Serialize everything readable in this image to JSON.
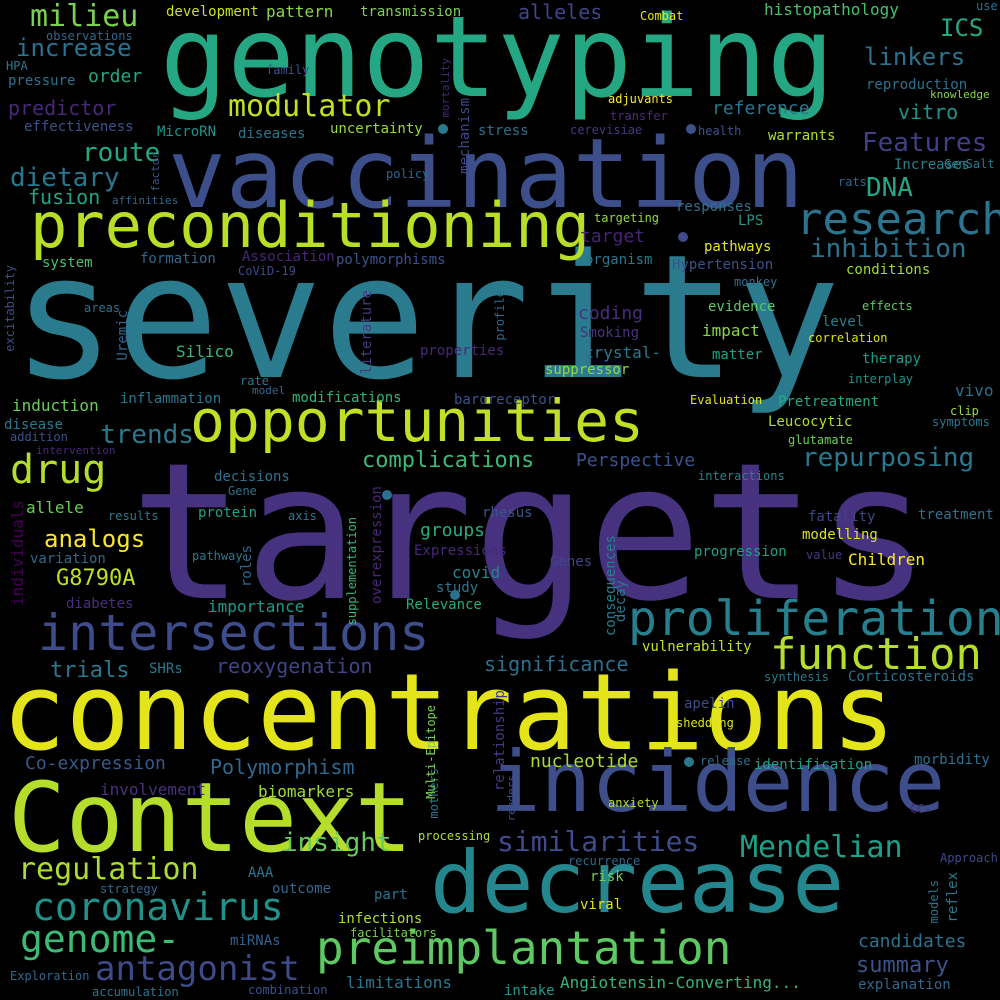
{
  "words": [
    {
      "text": "severity",
      "color": "#2b7b8e"
    },
    {
      "text": "targets",
      "color": "#46327e"
    },
    {
      "text": "concentrations",
      "color": "#e3e419"
    },
    {
      "text": "genotyping",
      "color": "#26a784"
    },
    {
      "text": "vaccination",
      "color": "#3c4f8a"
    },
    {
      "text": "Context",
      "color": "#b5de2c"
    },
    {
      "text": "incidence",
      "color": "#3d4e8a"
    },
    {
      "text": "decrease",
      "color": "#24878e"
    },
    {
      "text": "preconditioning",
      "color": "#b9de28"
    },
    {
      "text": "opportunities",
      "color": "#c0df25"
    },
    {
      "text": "intersections",
      "color": "#3e4c8a"
    },
    {
      "text": "preimplantation",
      "color": "#5ec962"
    },
    {
      "text": "proliferation",
      "color": "#277f8e"
    },
    {
      "text": "research",
      "color": "#2c738e"
    },
    {
      "text": "function",
      "color": "#b5de2c"
    },
    {
      "text": "drug",
      "color": "#b5de2c"
    },
    {
      "text": "coronavirus",
      "color": "#21918c"
    },
    {
      "text": "genome-",
      "color": "#3bbb75"
    },
    {
      "text": "antagonist",
      "color": "#3e4a89"
    },
    {
      "text": "milieu",
      "color": "#7ad151"
    },
    {
      "text": "modulator",
      "color": "#c2df23"
    },
    {
      "text": "regulation",
      "color": "#addc30"
    },
    {
      "text": "Mendelian",
      "color": "#1f9e89"
    },
    {
      "text": "similarities",
      "color": "#3e4c8a"
    },
    {
      "text": "repurposing",
      "color": "#2a788e"
    },
    {
      "text": "complications",
      "color": "#3aba76"
    },
    {
      "text": "inhibition",
      "color": "#2c728e"
    },
    {
      "text": "trends",
      "color": "#2a788e"
    },
    {
      "text": "insight",
      "color": "#65cb5e"
    },
    {
      "text": "Features",
      "color": "#433e85"
    },
    {
      "text": "dietary",
      "color": "#2a768e"
    },
    {
      "text": "route",
      "color": "#22a884"
    },
    {
      "text": "linkers",
      "color": "#2c728e"
    },
    {
      "text": "increase",
      "color": "#2c728e"
    },
    {
      "text": "ICS",
      "color": "#23a983"
    },
    {
      "text": "DNA",
      "color": "#22a785"
    },
    {
      "text": "analogs",
      "color": "#fde725"
    },
    {
      "text": "G8790A",
      "color": "#c2df23"
    },
    {
      "text": "trials",
      "color": "#2a788e"
    },
    {
      "text": "reoxygenation",
      "color": "#414487"
    },
    {
      "text": "significance",
      "color": "#2e6f8e"
    },
    {
      "text": "Polymorphism",
      "color": "#31688e"
    },
    {
      "text": "Co-expression",
      "color": "#38598c"
    },
    {
      "text": "predictor",
      "color": "#482878"
    },
    {
      "text": "fusion",
      "color": "#20a386"
    },
    {
      "text": "vitro",
      "color": "#20928c"
    },
    {
      "text": "summary",
      "color": "#3b528b"
    },
    {
      "text": "candidates",
      "color": "#2c728e"
    },
    {
      "text": "nucleotide",
      "color": "#addc30"
    },
    {
      "text": "relationship",
      "color": "#443983"
    },
    {
      "text": "alleles",
      "color": "#404588"
    },
    {
      "text": "Perspective",
      "color": "#3b528b"
    },
    {
      "text": "covid",
      "color": "#25848e"
    },
    {
      "text": "groups",
      "color": "#25ab82"
    },
    {
      "text": "biomarkers",
      "color": "#a0da39"
    },
    {
      "text": "order",
      "color": "#22a884"
    },
    {
      "text": "coding",
      "color": "#472f7d"
    },
    {
      "text": "target",
      "color": "#482475"
    },
    {
      "text": "reference",
      "color": "#2a768e"
    },
    {
      "text": "histopathology",
      "color": "#48c16e"
    },
    {
      "text": "development",
      "color": "#c8e020"
    },
    {
      "text": "pattern",
      "color": "#8bd646"
    },
    {
      "text": "transmission",
      "color": "#7fd34e"
    },
    {
      "text": "individuals",
      "color": "#440154"
    },
    {
      "text": "Children",
      "color": "#fde725"
    },
    {
      "text": "progression",
      "color": "#1fa187"
    },
    {
      "text": "modelling",
      "color": "#dde318"
    },
    {
      "text": "treatment",
      "color": "#2c728e"
    },
    {
      "text": "fatality",
      "color": "#404688"
    },
    {
      "text": "Leucocytic",
      "color": "#b2dd2d"
    },
    {
      "text": "Pretreatment",
      "color": "#22a884"
    },
    {
      "text": "vivo",
      "color": "#2d708e"
    },
    {
      "text": "therapy",
      "color": "#1f9a8a"
    },
    {
      "text": "level",
      "color": "#26828e"
    },
    {
      "text": "impact",
      "color": "#8bd646"
    },
    {
      "text": "evidence",
      "color": "#5cc863"
    },
    {
      "text": "matter",
      "color": "#1fa088"
    },
    {
      "text": "crystal-",
      "color": "#2a788e"
    },
    {
      "text": "suppressor",
      "color": "#95d840"
    },
    {
      "text": "Silico",
      "color": "#37b878"
    },
    {
      "text": "Uremic",
      "color": "#31668e"
    },
    {
      "text": "literature",
      "color": "#443a83"
    },
    {
      "text": "induction",
      "color": "#6ccd5a"
    },
    {
      "text": "inflammation",
      "color": "#29798e"
    },
    {
      "text": "modifications",
      "color": "#30b57c"
    },
    {
      "text": "allele",
      "color": "#6ece58"
    },
    {
      "text": "diabetes",
      "color": "#46307e"
    },
    {
      "text": "importance",
      "color": "#1e9b8a"
    },
    {
      "text": "Relevance",
      "color": "#25ac82"
    },
    {
      "text": "Expressions",
      "color": "#482878"
    },
    {
      "text": "study",
      "color": "#2a788e"
    },
    {
      "text": "protein",
      "color": "#1fa088"
    },
    {
      "text": "involvement",
      "color": "#46327e"
    },
    {
      "text": "infections",
      "color": "#b2dd2d"
    },
    {
      "text": "facilitators",
      "color": "#7ad151"
    },
    {
      "text": "limitations",
      "color": "#2a788e"
    },
    {
      "text": "Angiotensin-Converting...",
      "color": "#34b679"
    },
    {
      "text": "explanation",
      "color": "#31678e"
    },
    {
      "text": "intake",
      "color": "#1f998a"
    },
    {
      "text": "miRNAs",
      "color": "#34618d"
    },
    {
      "text": "outcome",
      "color": "#31688e"
    },
    {
      "text": "part",
      "color": "#2b758e"
    },
    {
      "text": "AAA",
      "color": "#2a788e"
    },
    {
      "text": "viral",
      "color": "#dde318"
    },
    {
      "text": "risk",
      "color": "#6ece58"
    },
    {
      "text": "mothers",
      "color": "#2a768e"
    },
    {
      "text": "identification",
      "color": "#1fa187"
    },
    {
      "text": "vulnerability",
      "color": "#c5e021"
    },
    {
      "text": "apelin",
      "color": "#3d4e8a"
    },
    {
      "text": "Corticosteroids",
      "color": "#2c728e"
    },
    {
      "text": "morbidity",
      "color": "#2c728e"
    },
    {
      "text": "consequences",
      "color": "#27808e"
    },
    {
      "text": "Genes",
      "color": "#404588"
    },
    {
      "text": "decay",
      "color": "#2a788e"
    },
    {
      "text": "rhesus",
      "color": "#39568c"
    },
    {
      "text": "interactions",
      "color": "#25848e"
    },
    {
      "text": "overexpression",
      "color": "#482878"
    },
    {
      "text": "supplementation",
      "color": "#37b878"
    },
    {
      "text": "roles",
      "color": "#31688e"
    },
    {
      "text": "axis",
      "color": "#2a788e"
    },
    {
      "text": "SHRs",
      "color": "#2a788e"
    },
    {
      "text": "pathways",
      "color": "#e5e419"
    },
    {
      "text": "Hypertension",
      "color": "#3b528b"
    },
    {
      "text": "conditions",
      "color": "#9fda3a"
    },
    {
      "text": "LPS",
      "color": "#1f998a"
    },
    {
      "text": "responses",
      "color": "#2c738e"
    },
    {
      "text": "targeting",
      "color": "#95d840"
    },
    {
      "text": "organism",
      "color": "#2a788e"
    },
    {
      "text": "polymorphisms",
      "color": "#3b528b"
    },
    {
      "text": "formation",
      "color": "#31678e"
    },
    {
      "text": "Association",
      "color": "#482677"
    },
    {
      "text": "CoViD-19",
      "color": "#3e4a89"
    },
    {
      "text": "system",
      "color": "#4ac16d"
    },
    {
      "text": "excitability",
      "color": "#3d4e8a"
    },
    {
      "text": "areas",
      "color": "#2d708e"
    },
    {
      "text": "properties",
      "color": "#482878"
    },
    {
      "text": "profile",
      "color": "#31688e"
    },
    {
      "text": "Smoking",
      "color": "#46337f"
    },
    {
      "text": "mechanism",
      "color": "#3e4989"
    },
    {
      "text": "stress",
      "color": "#2c728e"
    },
    {
      "text": "cerevisiae",
      "color": "#443983"
    },
    {
      "text": "uncertainty",
      "color": "#95d840"
    },
    {
      "text": "diseases",
      "color": "#2a788e"
    },
    {
      "text": "MicroRN",
      "color": "#21918c"
    },
    {
      "text": "effectiveness",
      "color": "#3b528b"
    },
    {
      "text": "pressure",
      "color": "#2c728e"
    },
    {
      "text": "HPA",
      "color": "#2a788e"
    },
    {
      "text": "observations",
      "color": "#31688e"
    },
    {
      "text": "family",
      "color": "#3b528b"
    },
    {
      "text": "mortality",
      "color": "#482878"
    },
    {
      "text": "adjuvants",
      "color": "#fde725"
    },
    {
      "text": "transfer",
      "color": "#472d7b"
    },
    {
      "text": "health",
      "color": "#3b528b"
    },
    {
      "text": "Combat",
      "color": "#e5e419"
    },
    {
      "text": "use",
      "color": "#2c728e"
    },
    {
      "text": "reproduction",
      "color": "#2c728e"
    },
    {
      "text": "knowledge",
      "color": "#8bd646"
    },
    {
      "text": "Increases",
      "color": "#26828e"
    },
    {
      "text": "warrants",
      "color": "#b5de2c"
    },
    {
      "text": "policy",
      "color": "#31688e"
    },
    {
      "text": "rats",
      "color": "#31688e"
    },
    {
      "text": "GenSalt",
      "color": "#2a788e"
    },
    {
      "text": "factor",
      "color": "#3b528b"
    },
    {
      "text": "affinities",
      "color": "#31688e"
    },
    {
      "text": "monkey",
      "color": "#2c728e"
    },
    {
      "text": "effects",
      "color": "#5ec962"
    },
    {
      "text": "correlation",
      "color": "#dde318"
    },
    {
      "text": "interplay",
      "color": "#21918c"
    },
    {
      "text": "baroreceptor",
      "color": "#3b528b"
    },
    {
      "text": "Evaluation",
      "color": "#e5e419"
    },
    {
      "text": "clip",
      "color": "#95d840"
    },
    {
      "text": "symptoms",
      "color": "#2a788e"
    },
    {
      "text": "glutamate",
      "color": "#6ece58"
    },
    {
      "text": "rate",
      "color": "#2a788e"
    },
    {
      "text": "model",
      "color": "#31688e"
    },
    {
      "text": "disease",
      "color": "#2a788e"
    },
    {
      "text": "addition",
      "color": "#3b528b"
    },
    {
      "text": "intervention",
      "color": "#482878"
    },
    {
      "text": "decisions",
      "color": "#2c728e"
    },
    {
      "text": "Gene",
      "color": "#2c728e"
    },
    {
      "text": "results",
      "color": "#2a788e"
    },
    {
      "text": "variation",
      "color": "#31688e"
    },
    {
      "text": "pathway",
      "color": "#2a788e"
    },
    {
      "text": "value",
      "color": "#443983"
    },
    {
      "text": "synthesis",
      "color": "#2a788e"
    },
    {
      "text": "shedding",
      "color": "#dde318"
    },
    {
      "text": "release",
      "color": "#2c728e"
    },
    {
      "text": "anxiety",
      "color": "#b5de2c"
    },
    {
      "text": "CC-",
      "color": "#482878"
    },
    {
      "text": "recurrence",
      "color": "#31688e"
    },
    {
      "text": "Approach",
      "color": "#3e4a89"
    },
    {
      "text": "Multi-Epitope",
      "color": "#7ad151"
    },
    {
      "text": "readers",
      "color": "#3b528b"
    },
    {
      "text": "processing",
      "color": "#b5de2c"
    },
    {
      "text": "strategy",
      "color": "#31688e"
    },
    {
      "text": "models",
      "color": "#2a788e"
    },
    {
      "text": "reflex",
      "color": "#2a788e"
    },
    {
      "text": "Exploration",
      "color": "#31688e"
    },
    {
      "text": "accumulation",
      "color": "#2c728e"
    },
    {
      "text": "combination",
      "color": "#3b528b"
    }
  ]
}
